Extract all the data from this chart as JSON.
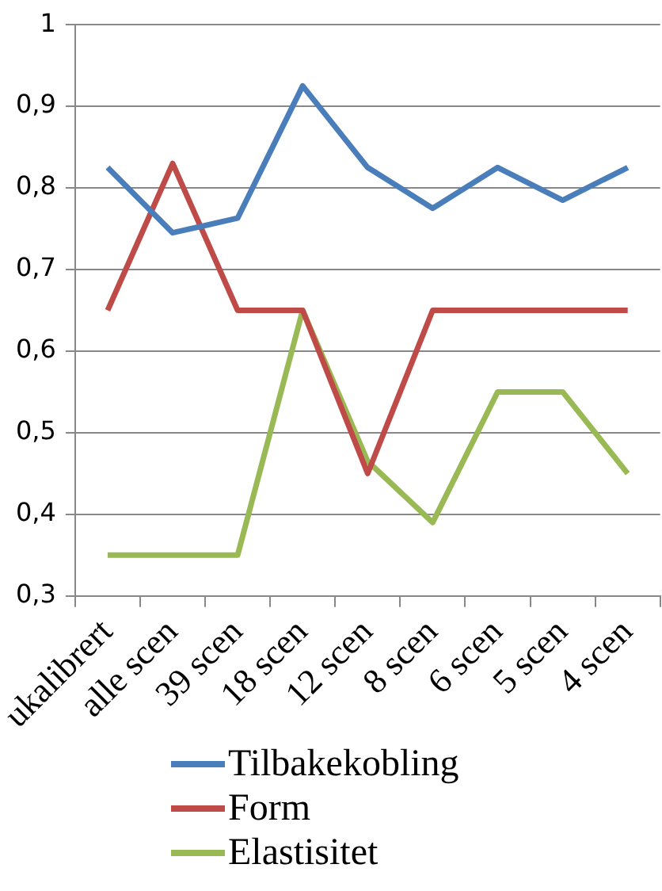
{
  "chart_data": {
    "type": "line",
    "categories": [
      "ukalibrert",
      "alle scen",
      "39 scen",
      "18 scen",
      "12 scen",
      "8 scen",
      "6 scen",
      "5 scen",
      "4 scen"
    ],
    "series": [
      {
        "name": "Tilbakekobling",
        "color": "#4a7ebb",
        "values": [
          0.825,
          0.745,
          0.763,
          0.925,
          0.825,
          0.775,
          0.825,
          0.785,
          0.825
        ]
      },
      {
        "name": "Form",
        "color": "#be4b48",
        "values": [
          0.65,
          0.83,
          0.65,
          0.65,
          0.45,
          0.65,
          0.65,
          0.65,
          0.65
        ]
      },
      {
        "name": "Elastisitet",
        "color": "#98b954",
        "values": [
          0.35,
          0.35,
          0.35,
          0.65,
          0.465,
          0.39,
          0.55,
          0.55,
          0.45
        ]
      }
    ],
    "ylim": [
      0.3,
      1
    ],
    "yticks": [
      {
        "value": 0.3,
        "label": "0,3"
      },
      {
        "value": 0.4,
        "label": "0,4"
      },
      {
        "value": 0.5,
        "label": "0,5"
      },
      {
        "value": 0.6,
        "label": "0,6"
      },
      {
        "value": 0.7,
        "label": "0,7"
      },
      {
        "value": 0.8,
        "label": "0,8"
      },
      {
        "value": 0.9,
        "label": "0,9"
      },
      1
    ],
    "grid": "y",
    "legend": "bottom",
    "marker": "none",
    "line_style": "solid"
  }
}
